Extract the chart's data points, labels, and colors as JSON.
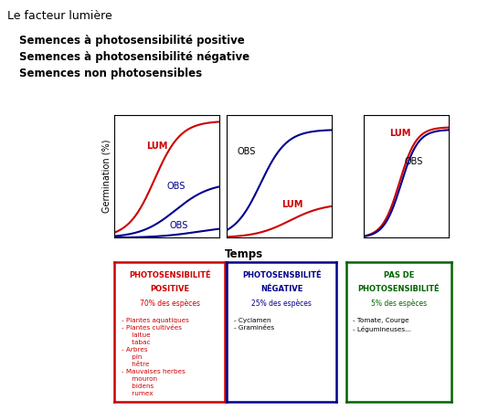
{
  "title": "Le facteur lumière",
  "subtitle_lines": [
    "Semences à photosensibilité positive",
    "Semences à photosensibilité négative",
    "Semences non photosensibles"
  ],
  "xlabel": "Temps",
  "ylabel": "Germination (%)",
  "red": "#cc0000",
  "blue": "#00008B",
  "green": "#006400",
  "plot1": {
    "lum_color": "#cc0000",
    "obs_color": "#00008B",
    "lum_label": "LUM",
    "obs_high_label": "OBS",
    "obs_low_label": "OBS"
  },
  "plot2": {
    "obs_color": "#00008B",
    "lum_color": "#cc0000",
    "obs_label": "OBS",
    "lum_label": "LUM"
  },
  "plot3": {
    "lum_color": "#cc0000",
    "obs_color": "#00008B",
    "lum_label": "LUM",
    "obs_label": "OBS"
  },
  "box1": {
    "border_color": "#cc0000",
    "title_color": "#cc0000",
    "title1": "PHOTOSENSIBILITÉ",
    "title2": "POSITIVE",
    "subtitle": "70% des espèces",
    "content_color": "#cc0000",
    "content_bold": "- Plantes aquatiques\n- Plantes cultivées",
    "content_normal": "     laitue\n     tabac",
    "content_bold2": "- Arbres",
    "content_normal2": "     pin\n     hêtre",
    "content_bold3": "- Mauvaises herbes",
    "content_normal3": "     mouron\n     bidens\n     rumex"
  },
  "box2": {
    "border_color": "#00008B",
    "title_color": "#00008B",
    "title1": "PHOTOSENSBILITÉ",
    "title2": "NÉGATIVE",
    "subtitle": "25% des espèces",
    "content_color": "#000000",
    "content": "- Cyclamen\n- Graminées"
  },
  "box3": {
    "border_color": "#006400",
    "title_color": "#006400",
    "title1": "PAS DE",
    "title2": "PHOTOSENSIBILITÉ",
    "subtitle": "5% des espèces",
    "content_color": "#000000",
    "content": "- Tomate, Courge\n- Légumineuses..."
  }
}
